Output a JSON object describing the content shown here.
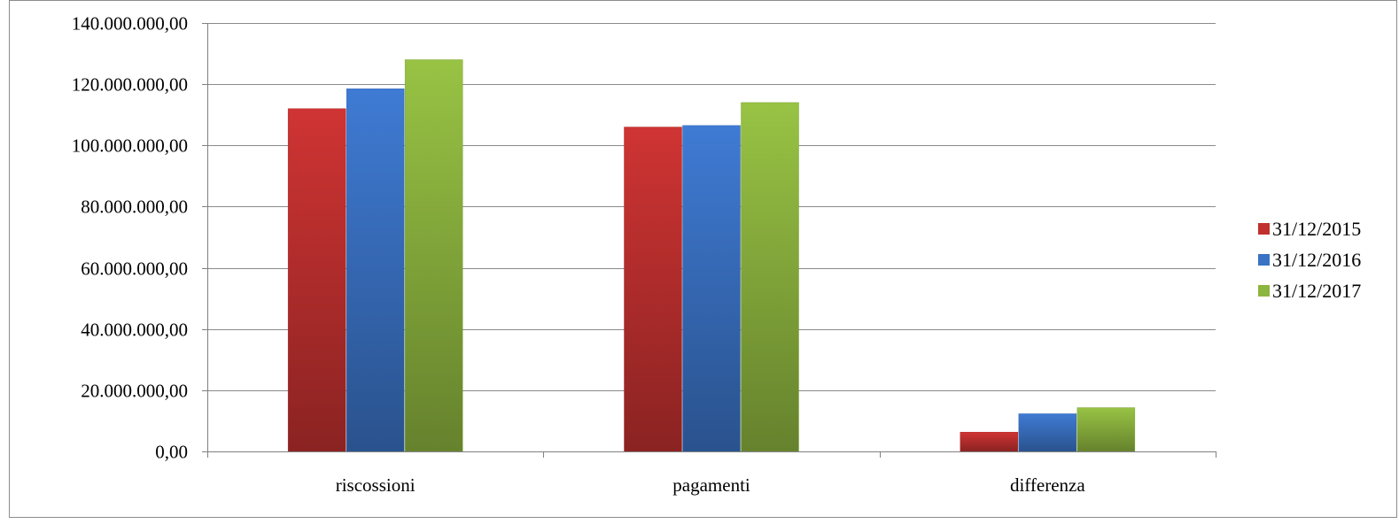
{
  "chart_data": {
    "type": "bar",
    "title": "",
    "xlabel": "",
    "ylabel": "",
    "categories": [
      "riscossioni",
      "pagamenti",
      "differenza"
    ],
    "series": [
      {
        "name": "31/12/2015",
        "values": [
          112000000,
          106000000,
          6300000
        ],
        "color": "#c0302f"
      },
      {
        "name": "31/12/2016",
        "values": [
          118500000,
          106500000,
          12300000
        ],
        "color": "#3a72c4"
      },
      {
        "name": "31/12/2017",
        "values": [
          128000000,
          114000000,
          14300000
        ],
        "color": "#8db53f"
      }
    ],
    "ylim": [
      0,
      140000000
    ],
    "yticks": [
      0,
      20000000,
      40000000,
      60000000,
      80000000,
      100000000,
      120000000,
      140000000
    ],
    "ytick_labels": [
      "0,00",
      "20.000.000,00",
      "40.000.000,00",
      "60.000.000,00",
      "80.000.000,00",
      "100.000.000,00",
      "120.000.000,00",
      "140.000.000,00"
    ],
    "grid": true,
    "legend_position": "right"
  }
}
